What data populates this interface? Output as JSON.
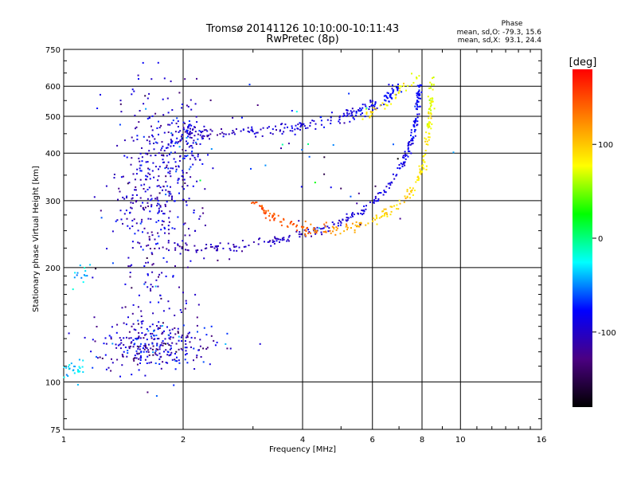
{
  "chart_data": {
    "type": "scatter",
    "title": "Tromsø 20141126 10:10:00-10:11:43",
    "subtitle": "RwPretec (8p)",
    "xlabel": "Frequency [MHz]",
    "ylabel": "Stationary phase Virtual Height [km]",
    "x_scale": "log",
    "y_scale": "log",
    "xlim": [
      1,
      16
    ],
    "ylim": [
      75,
      750
    ],
    "x_ticks": [
      {
        "value": 1,
        "label": "1"
      },
      {
        "value": 2,
        "label": "2"
      },
      {
        "value": 4,
        "label": "4"
      },
      {
        "value": 6,
        "label": "6"
      },
      {
        "value": 8,
        "label": "8"
      },
      {
        "value": 10,
        "label": "10"
      },
      {
        "value": 16,
        "label": "16"
      }
    ],
    "y_ticks": [
      {
        "value": 75,
        "label": "75"
      },
      {
        "value": 100,
        "label": "100"
      },
      {
        "value": 200,
        "label": "200"
      },
      {
        "value": 300,
        "label": "300"
      },
      {
        "value": 400,
        "label": "400"
      },
      {
        "value": 500,
        "label": "500"
      },
      {
        "value": 600,
        "label": "600"
      },
      {
        "value": 750,
        "label": "750"
      }
    ],
    "grid": true,
    "stats": {
      "heading": "Phase",
      "line1": "mean, sd,O: -79.3, 15.6",
      "line2": "mean, sd,X:  93.1, 24.4"
    },
    "colorbar": {
      "label": "[deg]",
      "range": [
        -180,
        180
      ],
      "ticks": [
        {
          "value": 100,
          "label": "100"
        },
        {
          "value": 0,
          "label": "0"
        },
        {
          "value": -100,
          "label": "-100"
        }
      ],
      "colors": [
        "#000000",
        "#4b0082",
        "#0000ff",
        "#00ffff",
        "#00ff00",
        "#ffff00",
        "#ff8000",
        "#ff0000"
      ]
    },
    "traces": [
      {
        "kind": "curve",
        "points": [
          [
            2.05,
            455
          ],
          [
            2.3,
            450
          ],
          [
            2.8,
            452
          ],
          [
            3.5,
            462
          ],
          [
            4.2,
            478
          ],
          [
            5.0,
            500
          ],
          [
            5.8,
            525
          ],
          [
            6.5,
            560
          ],
          [
            7.0,
            600
          ]
        ],
        "phase": [
          -105,
          -110,
          -100,
          -95,
          -90,
          -88,
          -85,
          -80,
          -75
        ],
        "spread": 0.02,
        "n": 220
      },
      {
        "kind": "curve",
        "points": [
          [
            1.85,
            228
          ],
          [
            2.2,
            225
          ],
          [
            2.8,
            228
          ],
          [
            3.5,
            236
          ],
          [
            4.2,
            248
          ],
          [
            5.0,
            262
          ],
          [
            5.8,
            285
          ],
          [
            6.5,
            320
          ],
          [
            7.2,
            380
          ],
          [
            7.6,
            450
          ],
          [
            7.8,
            520
          ],
          [
            7.9,
            600
          ]
        ],
        "phase": [
          -110,
          -108,
          -105,
          -100,
          -98,
          -95,
          -92,
          -90,
          -88,
          -85,
          -82,
          -80
        ],
        "spread": 0.015,
        "n": 280
      },
      {
        "kind": "curve",
        "points": [
          [
            3.0,
            300
          ],
          [
            3.4,
            270
          ],
          [
            4.0,
            252
          ],
          [
            4.6,
            250
          ],
          [
            5.2,
            255
          ],
          [
            6.0,
            265
          ],
          [
            6.8,
            285
          ],
          [
            7.6,
            320
          ],
          [
            8.1,
            380
          ],
          [
            8.3,
            450
          ],
          [
            8.4,
            520
          ],
          [
            8.5,
            620
          ]
        ],
        "phase": [
          150,
          145,
          140,
          130,
          115,
          100,
          95,
          90,
          85,
          80,
          75,
          70
        ],
        "spread": 0.015,
        "n": 260
      },
      {
        "kind": "curve",
        "points": [
          [
            5.8,
            500
          ],
          [
            6.3,
            525
          ],
          [
            6.8,
            560
          ],
          [
            7.3,
            600
          ],
          [
            7.8,
            640
          ]
        ],
        "phase": [
          90,
          85,
          80,
          75,
          70
        ],
        "spread": 0.02,
        "n": 40
      },
      {
        "kind": "cloud",
        "center": [
          1.7,
          300
        ],
        "sx": 0.13,
        "sy": 0.35,
        "phase": -100,
        "sd": 20,
        "n": 420
      },
      {
        "kind": "cloud",
        "center": [
          1.95,
          420
        ],
        "sx": 0.06,
        "sy": 0.14,
        "phase": -90,
        "sd": 18,
        "n": 120
      },
      {
        "kind": "cloud",
        "center": [
          1.7,
          125
        ],
        "sx": 0.17,
        "sy": 0.08,
        "phase": -100,
        "sd": 25,
        "n": 300
      },
      {
        "kind": "cloud",
        "center": [
          1.06,
          108
        ],
        "sx": 0.04,
        "sy": 0.03,
        "phase": -30,
        "sd": 10,
        "n": 30
      },
      {
        "kind": "cloud",
        "center": [
          1.1,
          190
        ],
        "sx": 0.03,
        "sy": 0.04,
        "phase": -40,
        "sd": 10,
        "n": 14
      },
      {
        "kind": "cloud",
        "center": [
          4.2,
          380
        ],
        "sx": 0.35,
        "sy": 0.25,
        "phase": -80,
        "sd": 60,
        "n": 40
      }
    ]
  }
}
